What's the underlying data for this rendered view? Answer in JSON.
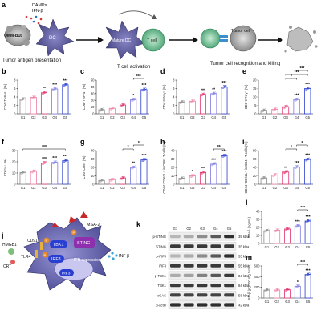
{
  "panel_a": {
    "label": "a",
    "cell_4t1": "4T1",
    "cell_b16": "OMM-B16",
    "dc": "DC",
    "damps": "DAMPs",
    "ifnb": "IFN-β",
    "mature_dc": "Mature DC",
    "t_cell": "T cell",
    "tumor_cell": "Tumor cell",
    "step1": "Tumor antigen presentation",
    "step2": "T cell activation",
    "step3": "Tumor cell recognition and killing"
  },
  "groups": [
    "G1",
    "G2",
    "G3",
    "G4",
    "G5"
  ],
  "colors": {
    "G1": "#8a8a8a",
    "G2": "#ec7fa4",
    "G3": "#e0316f",
    "G4": "#7e7be3",
    "G5": "#2a3fd1"
  },
  "chart_data": [
    {
      "panel": "b",
      "type": "bar",
      "ylabel": "CD4⁺TNF-α⁺ (%)",
      "yticks": [
        "0",
        "2",
        "4",
        "6",
        "8"
      ],
      "ylim": [
        0,
        8
      ],
      "values": [
        3.5,
        3.9,
        5.0,
        5.9,
        6.9
      ],
      "stars": [
        "",
        "",
        "**",
        "***",
        "***"
      ]
    },
    {
      "panel": "c",
      "type": "bar",
      "ylabel": "CD8⁺TNF-α⁺ (%)",
      "yticks": [
        "0",
        "10",
        "20",
        "30",
        "40",
        "50"
      ],
      "ylim": [
        0,
        50
      ],
      "values": [
        6,
        8,
        13,
        21,
        36
      ],
      "stars": [
        "",
        "",
        "",
        "*",
        "***"
      ],
      "brackets": [
        {
          "from": 3,
          "to": 4,
          "label": "***"
        }
      ]
    },
    {
      "panel": "d",
      "type": "bar",
      "ylabel": "CD4⁺IFN-γ⁺ (%)",
      "yticks": [
        "0",
        "2",
        "4",
        "6",
        "8"
      ],
      "ylim": [
        0,
        8
      ],
      "values": [
        2.8,
        3.0,
        4.6,
        4.8,
        6.4
      ],
      "stars": [
        "",
        "",
        "**",
        "**",
        "***"
      ]
    },
    {
      "panel": "e",
      "type": "bar",
      "ylabel": "CD8⁺IFN-γ⁺ (%)",
      "yticks": [
        "0",
        "5",
        "10",
        "15",
        "20"
      ],
      "ylim": [
        0,
        20
      ],
      "values": [
        2.0,
        2.6,
        4.2,
        8.5,
        15.0
      ],
      "stars": [
        "",
        "",
        "",
        "***",
        "***"
      ],
      "brackets": [
        {
          "from": 2,
          "to": 3,
          "label": "*"
        },
        {
          "from": 2,
          "to": 4,
          "label": "***"
        },
        {
          "from": 3,
          "to": 4,
          "label": "***"
        }
      ]
    },
    {
      "panel": "f",
      "type": "bar",
      "ylabel": "CD11c⁺ (%)",
      "yticks": [
        "0",
        "10",
        "20",
        "30"
      ],
      "ylim": [
        0,
        30
      ],
      "values": [
        10.5,
        11.5,
        19,
        19.5,
        21
      ],
      "stars": [
        "",
        "",
        "***",
        "***",
        "***"
      ],
      "brackets": [
        {
          "from": 0,
          "to": 4,
          "label": "***"
        }
      ]
    },
    {
      "panel": "g",
      "type": "bar",
      "ylabel": "CD3⁺CD8⁺ (%)",
      "yticks": [
        "0",
        "10",
        "20",
        "30",
        "40"
      ],
      "ylim": [
        0,
        40
      ],
      "values": [
        4.5,
        5.5,
        7.5,
        20,
        29
      ],
      "stars": [
        "",
        "",
        "",
        "**",
        "***"
      ],
      "brackets": [
        {
          "from": 2,
          "to": 3,
          "label": "*"
        },
        {
          "from": 3,
          "to": 4,
          "label": "*"
        }
      ]
    },
    {
      "panel": "h",
      "type": "bar",
      "ylabel": "CD44⁺CD62L⁺ in CD8⁺ T cells (%)",
      "yticks": [
        "0",
        "10",
        "20",
        "30",
        "40"
      ],
      "ylim": [
        0,
        40
      ],
      "values": [
        7,
        10,
        14,
        24,
        34
      ],
      "stars": [
        "",
        "*",
        "***",
        "***",
        "***"
      ],
      "brackets": [
        {
          "from": 3,
          "to": 4,
          "label": "**"
        }
      ]
    },
    {
      "panel": "i",
      "type": "bar",
      "ylabel": "CD44⁺CD62L⁺ in CD4⁺ T cells (%)",
      "yticks": [
        "0",
        "20",
        "40",
        "60",
        "80"
      ],
      "ylim": [
        0,
        80
      ],
      "values": [
        15,
        22,
        29,
        41,
        59
      ],
      "stars": [
        "",
        "",
        "**",
        "***",
        "***"
      ],
      "brackets": [
        {
          "from": 2,
          "to": 3,
          "label": "*"
        },
        {
          "from": 3,
          "to": 4,
          "label": "*"
        }
      ]
    },
    {
      "panel": "l",
      "type": "bar",
      "ylabel": "IFN-β (pg/mL)",
      "yticks": [
        "0",
        "10",
        "20",
        "30",
        "40"
      ],
      "ylim": [
        0,
        40
      ],
      "values": [
        16,
        16.5,
        18,
        22,
        28
      ],
      "stars": [
        "",
        "",
        "",
        "***",
        "***"
      ],
      "brackets": [
        {
          "from": 3,
          "to": 4,
          "label": "***"
        }
      ]
    },
    {
      "panel": "m",
      "type": "bar",
      "ylabel": "IFN-β (pg/100 mg tumor)",
      "yticks": [
        "0",
        "200",
        "400",
        "600"
      ],
      "ylim": [
        0,
        600
      ],
      "values": [
        150,
        150,
        155,
        220,
        440
      ],
      "stars": [
        "",
        "",
        "",
        "*",
        "***"
      ],
      "brackets": [
        {
          "from": 3,
          "to": 4,
          "label": "***"
        }
      ]
    }
  ],
  "panel_j": {
    "label": "j",
    "hmgb1": "HMGB1",
    "crt": "CRT",
    "cd91": "CD91",
    "tlr4": "TLR4",
    "tbk1": "TBK1",
    "irf3": "IRF3",
    "irf3_nuc": "IRF3",
    "sting": "STING",
    "msa2": "MSA-2",
    "ifn_expr": "IFN expression",
    "ifnb": "INF-β",
    "p": "P"
  },
  "panel_k": {
    "label": "k",
    "lanes": [
      "G1",
      "G2",
      "G3",
      "G4",
      "G5"
    ],
    "rows": [
      {
        "name": "p-STING",
        "kda": "35 kDa",
        "intensity": [
          0.25,
          0.3,
          0.45,
          0.7,
          0.9
        ]
      },
      {
        "name": "STING",
        "kda": "35 kDa",
        "intensity": [
          0.85,
          0.85,
          0.85,
          0.85,
          0.85
        ]
      },
      {
        "name": "p-IRF3",
        "kda": "55 kDa",
        "intensity": [
          0.25,
          0.3,
          0.45,
          0.7,
          0.9
        ]
      },
      {
        "name": "IRF3",
        "kda": "55 kDa",
        "intensity": [
          0.85,
          0.85,
          0.85,
          0.85,
          0.85
        ]
      },
      {
        "name": "p-TBK1",
        "kda": "84 kDa",
        "intensity": [
          0.3,
          0.35,
          0.5,
          0.7,
          0.85
        ]
      },
      {
        "name": "TBK1",
        "kda": "84 kDa",
        "intensity": [
          0.85,
          0.85,
          0.85,
          0.85,
          0.85
        ]
      },
      {
        "name": "cGAS",
        "kda": "58 kDa",
        "intensity": [
          0.8,
          0.8,
          0.8,
          0.8,
          0.8
        ]
      },
      {
        "name": "β-actin",
        "kda": "42 kDa",
        "intensity": [
          0.9,
          0.9,
          0.9,
          0.9,
          0.9
        ]
      }
    ]
  }
}
